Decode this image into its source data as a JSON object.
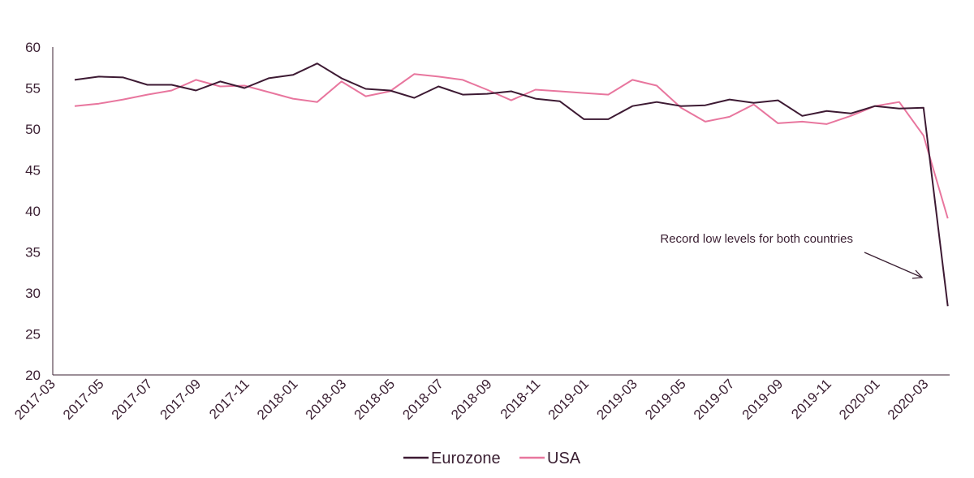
{
  "chart_data": {
    "type": "line",
    "x": [
      "2017-04",
      "2017-05",
      "2017-06",
      "2017-07",
      "2017-08",
      "2017-09",
      "2017-10",
      "2017-11",
      "2017-12",
      "2018-01",
      "2018-02",
      "2018-03",
      "2018-04",
      "2018-05",
      "2018-06",
      "2018-07",
      "2018-08",
      "2018-09",
      "2018-10",
      "2018-11",
      "2018-12",
      "2019-01",
      "2019-02",
      "2019-03",
      "2019-04",
      "2019-05",
      "2019-06",
      "2019-07",
      "2019-08",
      "2019-09",
      "2019-10",
      "2019-11",
      "2019-12",
      "2020-01",
      "2020-02",
      "2020-03",
      "2020-04"
    ],
    "x_tick_labels": [
      "2017-03",
      "2017-05",
      "2017-07",
      "2017-09",
      "2017-11",
      "2018-01",
      "2018-03",
      "2018-05",
      "2018-07",
      "2018-09",
      "2018-11",
      "2019-01",
      "2019-03",
      "2019-05",
      "2019-07",
      "2019-09",
      "2019-11",
      "2020-01",
      "2020-03"
    ],
    "y_ticks": [
      20,
      25,
      30,
      35,
      40,
      45,
      50,
      55,
      60
    ],
    "ylim": [
      20,
      60
    ],
    "series": [
      {
        "name": "Eurozone",
        "color": "#3d1a33",
        "values": [
          56.0,
          56.4,
          56.3,
          55.4,
          55.4,
          54.7,
          55.8,
          55.0,
          56.2,
          56.6,
          58.0,
          56.2,
          54.9,
          54.7,
          53.8,
          55.2,
          54.2,
          54.3,
          54.6,
          53.7,
          53.4,
          51.2,
          51.2,
          52.8,
          53.3,
          52.8,
          52.9,
          53.6,
          53.2,
          53.5,
          51.6,
          52.2,
          51.9,
          52.8,
          52.5,
          52.6,
          28.4
        ]
      },
      {
        "name": "USA",
        "color": "#e8769e",
        "values": [
          52.8,
          53.1,
          53.6,
          54.2,
          54.7,
          56.0,
          55.2,
          55.3,
          54.5,
          53.7,
          53.3,
          55.8,
          54.0,
          54.6,
          56.7,
          56.4,
          56.0,
          54.8,
          53.5,
          54.8,
          54.6,
          54.4,
          54.2,
          56.0,
          55.3,
          52.6,
          50.9,
          51.5,
          53.0,
          50.7,
          50.9,
          50.6,
          51.6,
          52.8,
          53.3,
          49.2,
          39.1
        ]
      }
    ],
    "annotation": {
      "text": "Record low levels for both countries"
    },
    "legend_position": "bottom-center",
    "grid": false
  }
}
